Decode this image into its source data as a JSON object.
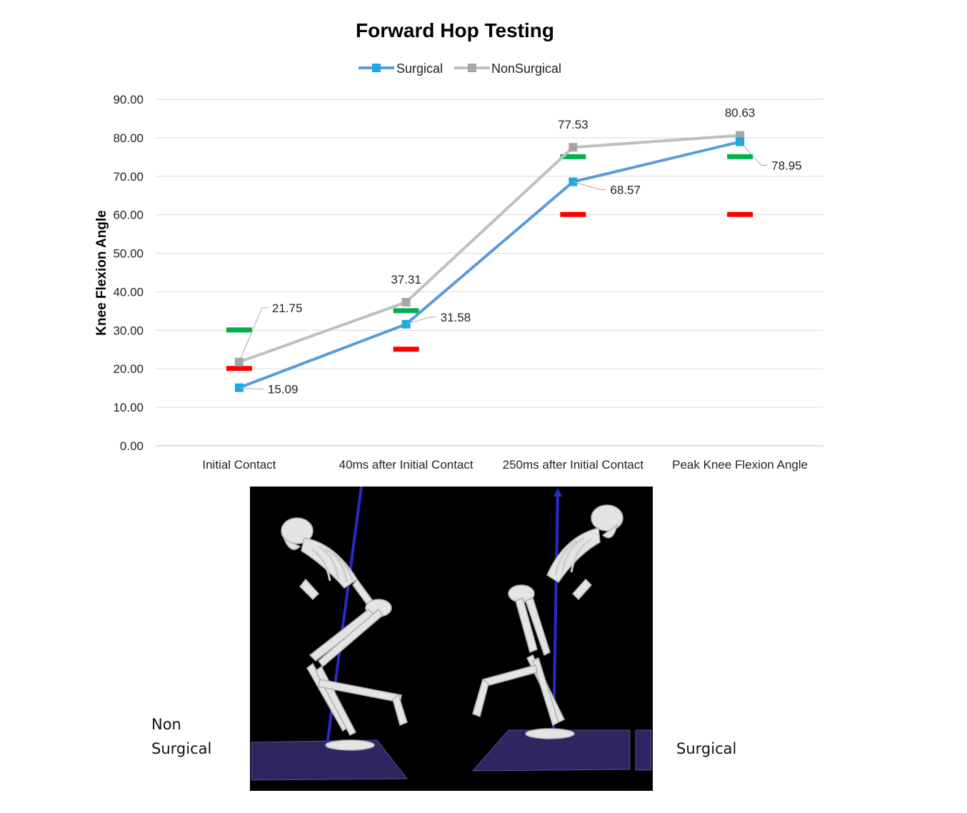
{
  "chart_data": {
    "type": "line",
    "title": "Forward Hop Testing",
    "ylabel": "Knee Flexion Angle",
    "xlabel": "",
    "categories": [
      "Initial Contact",
      "40ms after Initial Contact",
      "250ms after Initial Contact",
      "Peak Knee Flexion Angle"
    ],
    "ylim": [
      0,
      90
    ],
    "yticks": [
      "0.00",
      "10.00",
      "20.00",
      "30.00",
      "40.00",
      "50.00",
      "60.00",
      "70.00",
      "80.00",
      "90.00"
    ],
    "grid": true,
    "legend": "top-center",
    "series": [
      {
        "name": "Surgical",
        "color": "#5b9bd5",
        "marker_color": "#1aa9e3",
        "values": [
          15.09,
          31.58,
          68.57,
          78.95
        ],
        "labels": [
          "15.09",
          "31.58",
          "68.57",
          "78.95"
        ]
      },
      {
        "name": "NonSurgical",
        "color": "#bfbfbf",
        "marker_color": "#a6a6a6",
        "values": [
          21.75,
          37.31,
          77.53,
          80.63
        ],
        "labels": [
          "21.75",
          "37.31",
          "77.53",
          "80.63"
        ]
      }
    ],
    "reference_marks": {
      "green": {
        "color": "#00b050",
        "values": [
          30,
          35,
          75,
          75
        ]
      },
      "red": {
        "color": "#ff0000",
        "values": [
          20,
          25,
          60,
          60
        ]
      }
    }
  },
  "captions": {
    "left_line1": "Non",
    "left_line2": "Surgical",
    "right": "Surgical"
  }
}
